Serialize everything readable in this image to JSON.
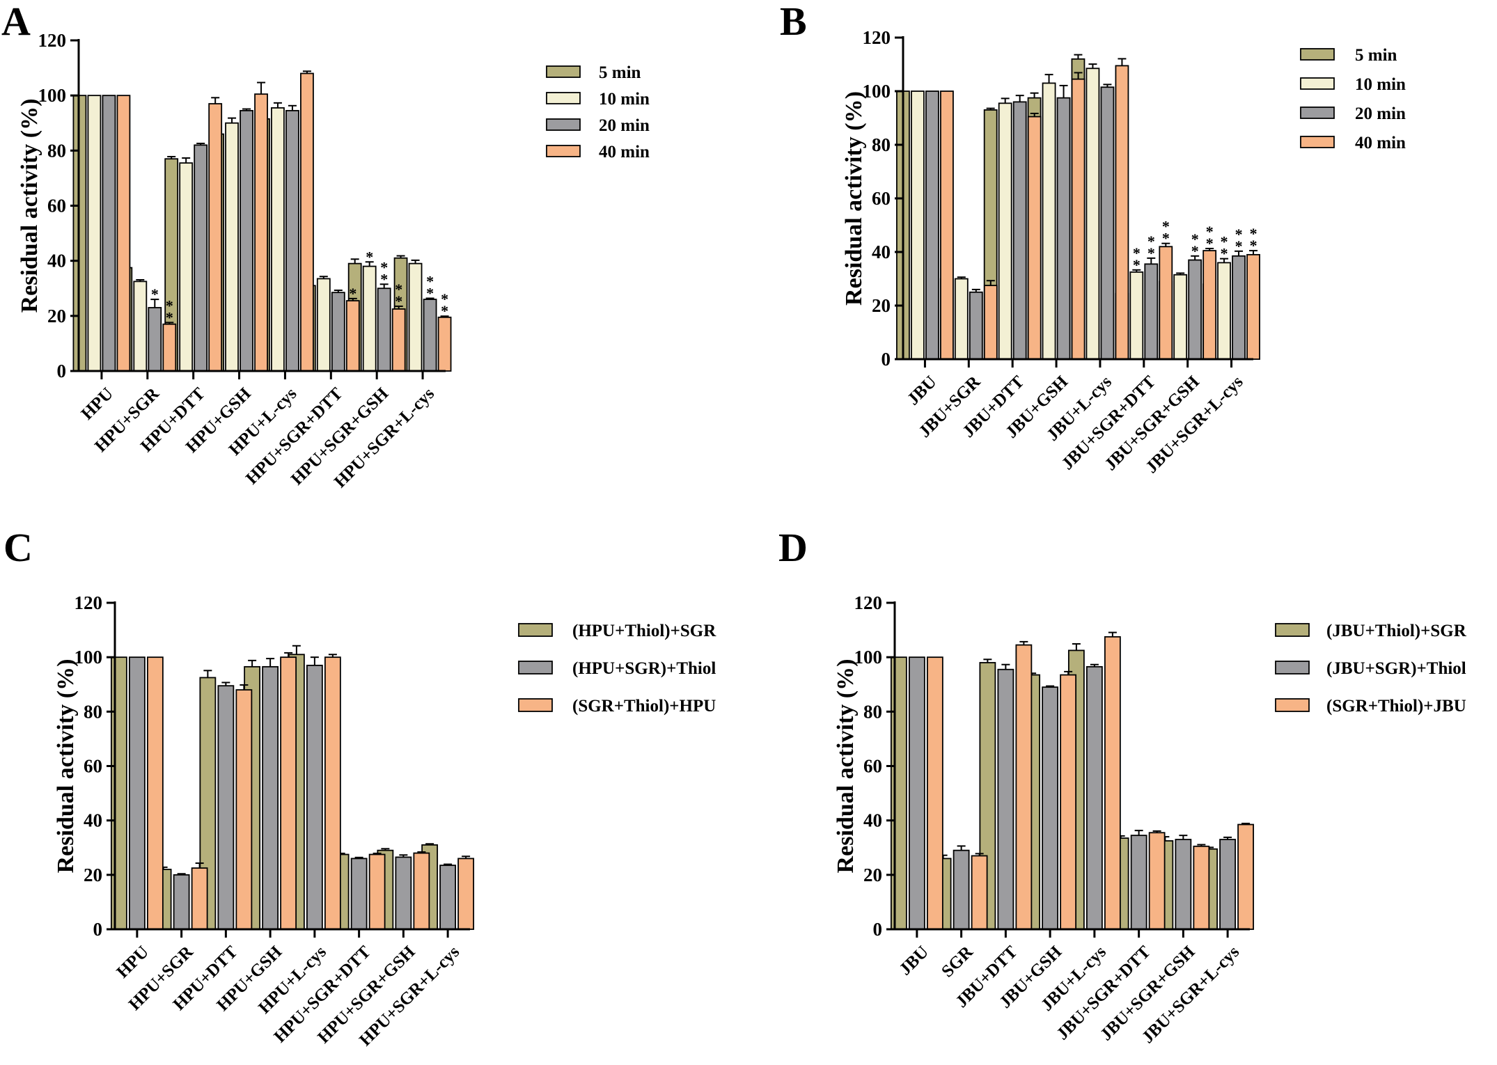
{
  "chart_data": [
    {
      "panel": "A",
      "type": "bar",
      "ylabel": "Residual activity (%)",
      "ylim": [
        0,
        120
      ],
      "yticks": [
        0,
        20,
        40,
        60,
        80,
        100,
        120
      ],
      "categories": [
        "HPU",
        "HPU+SGR",
        "HPU+DTT",
        "HPU+GSH",
        "HPU+L-cys",
        "HPU+SGR+DTT",
        "HPU+SGR+GSH",
        "HPU+SGR+L-cys"
      ],
      "legend_position": "top-right",
      "series": [
        {
          "name": "5 min",
          "color": "#b5b07b",
          "values": [
            100,
            37.5,
            77,
            86,
            91.5,
            31,
            39,
            41
          ],
          "errors": [
            0,
            1,
            0.8,
            1.8,
            2.3,
            2.5,
            1.6,
            0.8
          ],
          "stars": [
            "",
            "",
            "",
            "",
            "",
            "",
            "",
            ""
          ]
        },
        {
          "name": "10 min",
          "color": "#f3f0d4",
          "values": [
            100,
            32.5,
            75.5,
            90,
            95.5,
            33.5,
            38,
            39
          ],
          "errors": [
            0,
            0.6,
            1.8,
            1.8,
            1.8,
            0.8,
            1.6,
            1.2
          ],
          "stars": [
            "",
            "",
            "",
            "",
            "",
            "",
            "*",
            ""
          ]
        },
        {
          "name": "20 min",
          "color": "#9c9c9f",
          "values": [
            100,
            23,
            82,
            94.5,
            94.5,
            28.5,
            30,
            26
          ],
          "errors": [
            0,
            3,
            0.6,
            0.6,
            1.8,
            0.8,
            1.5,
            0.4
          ],
          "stars": [
            "",
            "*",
            "",
            "",
            "",
            "",
            "**",
            "**"
          ]
        },
        {
          "name": "40 min",
          "color": "#f7b486",
          "values": [
            100,
            17,
            97,
            100.5,
            108,
            25.5,
            22.5,
            19.5
          ],
          "errors": [
            0,
            0.6,
            2.2,
            4.2,
            0.8,
            0.8,
            1,
            0.4
          ],
          "stars": [
            "",
            "**",
            "",
            "",
            "",
            "*",
            "**",
            "**"
          ]
        }
      ]
    },
    {
      "panel": "B",
      "type": "bar",
      "ylabel": "Residual activity (%)",
      "ylim": [
        0,
        120
      ],
      "yticks": [
        0,
        20,
        40,
        60,
        80,
        100,
        120
      ],
      "categories": [
        "JBU",
        "JBU+SGR",
        "JBU+DTT",
        "JBU+GSH",
        "JBU+L-cys",
        "JBU+SGR+DTT",
        "JBU+SGR+GSH",
        "JBU+SGR+L-cys"
      ],
      "legend_position": "top-right",
      "series": [
        {
          "name": "5 min",
          "color": "#b5b07b",
          "values": [
            100,
            30,
            93,
            97.5,
            112,
            24.5,
            29,
            28
          ],
          "errors": [
            0,
            1,
            0.6,
            1.8,
            1.6,
            0.8,
            0.4,
            1.2
          ],
          "stars": [
            "",
            "",
            "",
            "",
            "",
            "",
            "",
            ""
          ]
        },
        {
          "name": "10 min",
          "color": "#f3f0d4",
          "values": [
            100,
            30,
            95.5,
            103,
            108.5,
            32.5,
            31.5,
            36
          ],
          "errors": [
            0,
            0.6,
            1.8,
            3.2,
            1.6,
            0.8,
            0.6,
            1.5
          ],
          "stars": [
            "",
            "",
            "",
            "",
            "",
            "**",
            "",
            "**"
          ]
        },
        {
          "name": "20 min",
          "color": "#9c9c9f",
          "values": [
            100,
            25,
            96,
            97.5,
            101.5,
            35.5,
            37,
            38.5
          ],
          "errors": [
            0,
            1,
            2.4,
            4.6,
            1,
            2.2,
            1.5,
            1.8
          ],
          "stars": [
            "",
            "",
            "",
            "",
            "",
            "**",
            "**",
            "**"
          ]
        },
        {
          "name": "40 min",
          "color": "#f7b486",
          "values": [
            100,
            27.5,
            90.5,
            104.5,
            109.5,
            42,
            40.5,
            39
          ],
          "errors": [
            0,
            1.8,
            1.2,
            2.4,
            2.6,
            1.2,
            0.8,
            1.5
          ],
          "stars": [
            "",
            "",
            "",
            "",
            "",
            "**",
            "**",
            "**"
          ]
        }
      ]
    },
    {
      "panel": "C",
      "type": "bar",
      "ylabel": "Residual activity (%)",
      "ylim": [
        0,
        120
      ],
      "yticks": [
        0,
        20,
        40,
        60,
        80,
        100,
        120
      ],
      "categories": [
        "HPU",
        "HPU+SGR",
        "HPU+DTT",
        "HPU+GSH",
        "HPU+L-cys",
        "HPU+SGR+DTT",
        "HPU+SGR+GSH",
        "HPU+SGR+L-cys"
      ],
      "legend_position": "top-right",
      "series": [
        {
          "name": "(HPU+Thiol)+SGR",
          "color": "#b5b07b",
          "values": [
            100,
            22,
            92.5,
            96.5,
            101,
            27.5,
            29,
            31
          ],
          "errors": [
            0,
            0.8,
            2.6,
            2.3,
            3.2,
            0.4,
            0.6,
            0.4
          ],
          "stars": []
        },
        {
          "name": "(HPU+SGR)+Thiol",
          "color": "#9c9c9f",
          "values": [
            100,
            20,
            89.5,
            96.5,
            97,
            26,
            26.5,
            23.5
          ],
          "errors": [
            0,
            0.4,
            1.2,
            3,
            3,
            0.4,
            0.8,
            0.4
          ],
          "stars": []
        },
        {
          "name": "(SGR+Thiol)+HPU",
          "color": "#f7b486",
          "values": [
            100,
            22.5,
            88,
            100,
            100,
            27.5,
            28,
            26
          ],
          "errors": [
            0,
            1.8,
            1.8,
            1.6,
            1,
            0.4,
            0.4,
            0.8
          ],
          "stars": []
        }
      ]
    },
    {
      "panel": "D",
      "type": "bar",
      "ylabel": "Residual activity (%)",
      "ylim": [
        0,
        120
      ],
      "yticks": [
        0,
        20,
        40,
        60,
        80,
        100,
        120
      ],
      "categories": [
        "JBU",
        "SGR",
        "JBU+DTT",
        "JBU+GSH",
        "JBU+L-cys",
        "JBU+SGR+DTT",
        "JBU+SGR+GSH",
        "JBU+SGR+L-cys"
      ],
      "legend_position": "top-right",
      "series": [
        {
          "name": "(JBU+Thiol)+SGR",
          "color": "#b5b07b",
          "values": [
            100,
            26,
            98,
            93.5,
            102.5,
            33.5,
            32.5,
            29.5
          ],
          "errors": [
            0,
            1.2,
            1.2,
            0.6,
            2.4,
            0.8,
            1.5,
            0.6
          ],
          "stars": []
        },
        {
          "name": "(JBU+SGR)+Thiol",
          "color": "#9c9c9f",
          "values": [
            100,
            29,
            95.5,
            89,
            96.5,
            34.5,
            33,
            33
          ],
          "errors": [
            0,
            1.6,
            1.8,
            0.4,
            0.8,
            1.8,
            1.5,
            0.8
          ],
          "stars": []
        },
        {
          "name": "(SGR+Thiol)+JBU",
          "color": "#f7b486",
          "values": [
            100,
            27,
            104.5,
            93.5,
            107.5,
            35.5,
            30.5,
            38.5
          ],
          "errors": [
            0,
            0.8,
            1.2,
            1.2,
            1.6,
            0.6,
            0.6,
            0.4
          ],
          "stars": []
        }
      ]
    }
  ]
}
